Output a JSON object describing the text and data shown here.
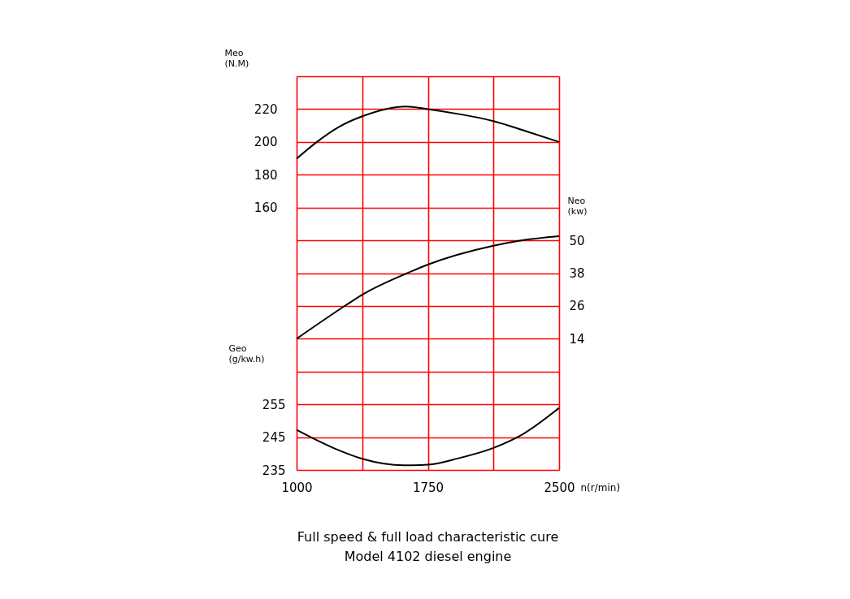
{
  "chart_data": {
    "type": "line",
    "title": "Full speed & full load characteristic cure",
    "subtitle": "Model 4102 diesel engine",
    "xlabel": "n(r/min)",
    "ylabel": "Meo\n(N.M)",
    "y2label": "Neo\n(kw)",
    "y3label": "Geo\n(g/kw.h)",
    "xlim": [
      1000,
      2500
    ],
    "xticks": [
      1000,
      {
        "value": 1375,
        "label": null
      },
      1750,
      {
        "value": 2125,
        "label": null
      },
      2500
    ],
    "ylim": [
      0,
      240
    ],
    "yticks": [
      {
        "value": 0,
        "label": null
      },
      {
        "value": 20,
        "label": null
      },
      {
        "value": 40,
        "label": null
      },
      {
        "value": 60,
        "label": null
      },
      {
        "value": 80,
        "label": null
      },
      {
        "value": 100,
        "label": null
      },
      {
        "value": 120,
        "label": null
      },
      {
        "value": 140,
        "label": null
      },
      160,
      180,
      200,
      220,
      {
        "value": 240,
        "label": null
      }
    ],
    "y2lim": [
      -34,
      110
    ],
    "y2ticks": [
      14,
      26,
      38,
      50
    ],
    "y3lim": [
      235,
      355
    ],
    "y3ticks": [
      235,
      245,
      255
    ],
    "grid": true,
    "series": [
      {
        "color": "#000000",
        "axis": "y",
        "x": [
          1000,
          1116,
          1240,
          1375,
          1625,
          1750,
          1937,
          2125,
          2309,
          2500
        ],
        "values": [
          189.8,
          200,
          209,
          215.6,
          221.6,
          220,
          216.8,
          212.7,
          206.6,
          200
        ]
      },
      {
        "color": "#000000",
        "axis": "y2",
        "x": [
          1000,
          1280,
          1375,
          1625,
          1750,
          2125,
          2291,
          2500
        ],
        "values": [
          14,
          26.2,
          30.1,
          37.8,
          41.1,
          48.0,
          50,
          51.5
        ]
      },
      {
        "color": "#000000",
        "axis": "y3",
        "x": [
          1000,
          1223,
          1375,
          1612,
          1750,
          1921,
          2125,
          2277,
          2500
        ],
        "values": [
          247.2,
          241.4,
          238.4,
          236.4,
          236.6,
          238.5,
          241.7,
          245.4,
          253.9
        ]
      }
    ]
  }
}
